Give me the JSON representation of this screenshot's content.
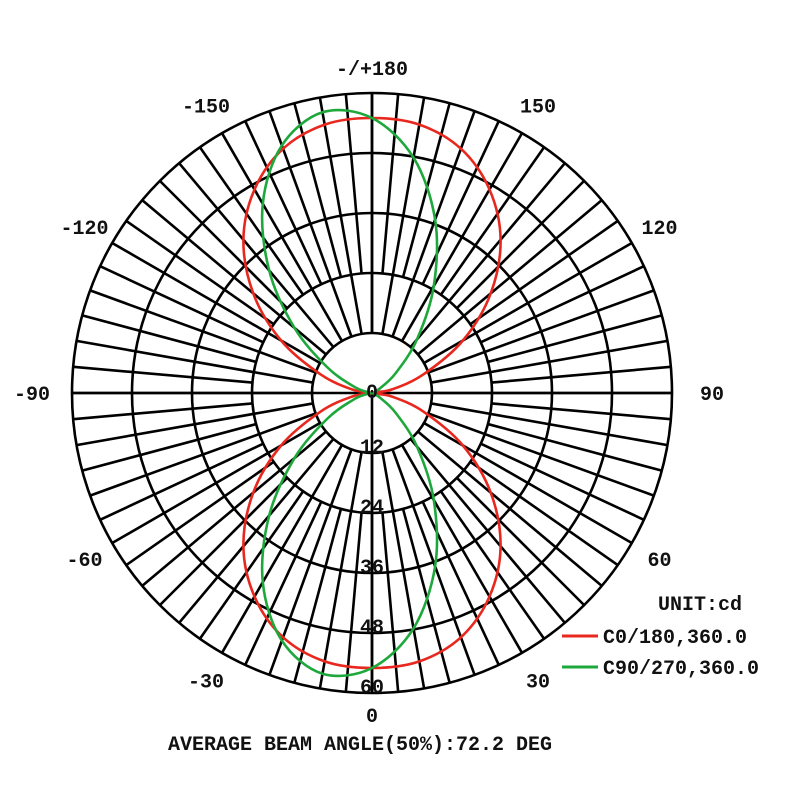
{
  "chart_data": {
    "type": "polar",
    "unit_label": "UNIT:cd",
    "footer": "AVERAGE BEAM ANGLE(50%):72.2 DEG",
    "radial_ticks": [
      "0",
      "12",
      "24",
      "36",
      "48",
      "60"
    ],
    "radial_values": [
      0,
      12,
      24,
      36,
      48,
      60
    ],
    "rlim": [
      0,
      60
    ],
    "angle_ticks": [
      {
        "angle": 180,
        "label": "-/+180"
      },
      {
        "angle": 150,
        "label": "150"
      },
      {
        "angle": 120,
        "label": "120"
      },
      {
        "angle": 90,
        "label": "90"
      },
      {
        "angle": 60,
        "label": "60"
      },
      {
        "angle": 30,
        "label": "30"
      },
      {
        "angle": 0,
        "label": "0"
      },
      {
        "angle": -30,
        "label": "-30"
      },
      {
        "angle": -60,
        "label": "-60"
      },
      {
        "angle": -90,
        "label": "-90"
      },
      {
        "angle": -120,
        "label": "-120"
      },
      {
        "angle": -150,
        "label": "-150"
      }
    ],
    "angles": [
      -180,
      -170,
      -160,
      -150,
      -140,
      -130,
      -120,
      -110,
      -100,
      -90,
      -80,
      -70,
      -60,
      -50,
      -40,
      -30,
      -20,
      -10,
      0,
      10,
      20,
      30,
      40,
      50,
      60,
      70,
      80,
      90,
      100,
      110,
      120,
      130,
      140,
      150,
      160,
      170
    ],
    "series": [
      {
        "name": "C0/180,360.0",
        "color": "#e8281e",
        "values": [
          55,
          54.5,
          52,
          47,
          40,
          31,
          21,
          11,
          4,
          0,
          4,
          11,
          21,
          31,
          40,
          47,
          52,
          54.5,
          55,
          54.5,
          52,
          47,
          40,
          31,
          21,
          11,
          4,
          0,
          4,
          11,
          21,
          31,
          40,
          47,
          52,
          54.5
        ]
      },
      {
        "name": "C90/270,360.0",
        "color": "#1ea83c",
        "values": [
          55,
          57,
          52.7,
          43.7,
          32,
          20.2,
          10.4,
          4,
          0.9,
          0.1,
          0.9,
          4,
          10.4,
          20.2,
          32,
          43.7,
          52.7,
          57,
          55,
          47.8,
          36.9,
          24.7,
          14,
          6.2,
          1.8,
          0.2,
          0,
          0,
          0,
          0.2,
          1.8,
          6.2,
          14,
          24.7,
          36.9,
          47.8
        ]
      }
    ],
    "legend_position": "bottom-right",
    "grid": true
  }
}
